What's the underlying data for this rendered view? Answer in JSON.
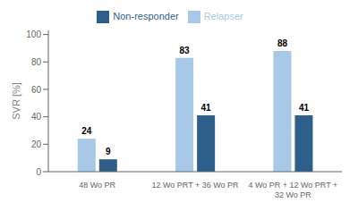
{
  "chart_data": {
    "type": "bar",
    "categories": [
      "48 Wo PR",
      "12 Wo PRT + 36 Wo PR",
      "4 Wo PR + 12 Wo PRT +\n32 Wo PR"
    ],
    "series": [
      {
        "name": "Relapser",
        "color": "#a8c8e8",
        "values": [
          24,
          83,
          88
        ]
      },
      {
        "name": "Non-responder",
        "color": "#2e5f8a",
        "values": [
          9,
          41,
          41
        ]
      }
    ],
    "ylabel": "SVR [%]",
    "ylim": [
      0,
      103
    ],
    "yticks": [
      0,
      20,
      40,
      60,
      80,
      100
    ],
    "legend": "top",
    "data_labels": true,
    "grid": false
  }
}
